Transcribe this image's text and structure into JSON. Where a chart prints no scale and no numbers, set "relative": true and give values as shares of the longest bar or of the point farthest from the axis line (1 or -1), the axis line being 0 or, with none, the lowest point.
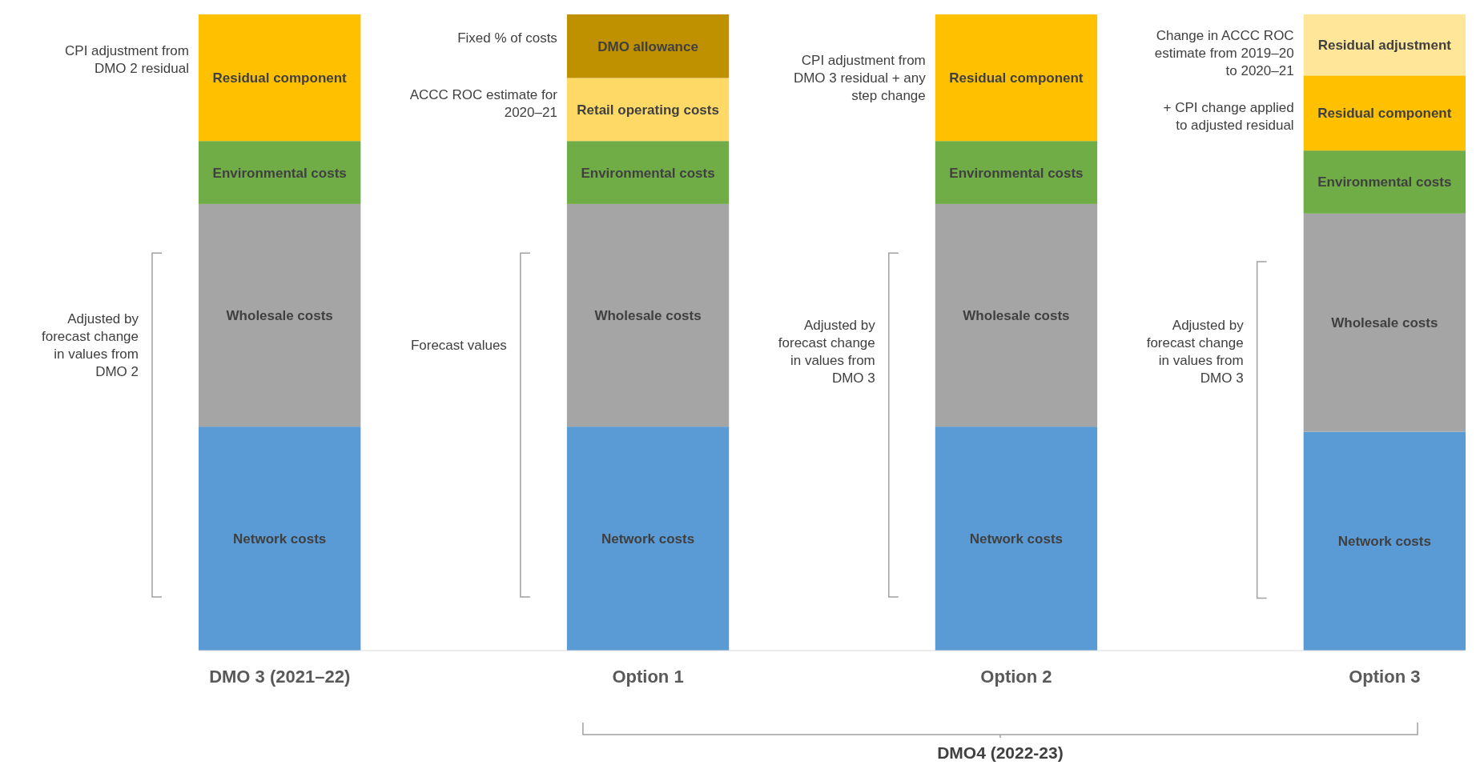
{
  "chart_data": {
    "type": "bar",
    "stacked": true,
    "relative": true,
    "categories": [
      "DMO 3 (2021–22)",
      "Option 1",
      "Option 2",
      "Option 3"
    ],
    "series": [
      {
        "name": "Network costs",
        "color": "#5b9bd5",
        "values": [
          0.352,
          0.352,
          0.352,
          0.344
        ]
      },
      {
        "name": "Wholesale costs",
        "color": "#a5a5a5",
        "values": [
          0.35,
          0.35,
          0.35,
          0.343
        ]
      },
      {
        "name": "Environmental costs",
        "color": "#70ad47",
        "values": [
          0.099,
          0.099,
          0.099,
          0.099
        ]
      },
      {
        "name": "Residual component",
        "color": "#ffc000",
        "values": [
          0.199,
          null,
          0.199,
          0.118
        ]
      },
      {
        "name": "Retail operating costs",
        "color": "#ffd966",
        "values": [
          null,
          0.099,
          null,
          null
        ]
      },
      {
        "name": "DMO allowance",
        "color": "#bf9000",
        "values": [
          null,
          0.1,
          null,
          null
        ]
      },
      {
        "name": "Residual adjustment",
        "color": "#ffe699",
        "values": [
          null,
          null,
          null,
          0.096
        ]
      }
    ],
    "annotations": [
      "CPI adjustment from DMO 2 residual",
      "Adjusted by forecast change in values from DMO 2",
      "Fixed % of costs",
      "ACCC ROC estimate for 2020–21",
      "Forecast values",
      "CPI adjustment from DMO 3 residual + any step change",
      "Adjusted by forecast change in values from DMO 3",
      "Change in ACCC ROC estimate from 2019–20 to 2020–21",
      "+ CPI change applied to adjusted residual",
      "Adjusted by forecast change in values from DMO 3",
      "DMO4 (2022-23)"
    ]
  }
}
